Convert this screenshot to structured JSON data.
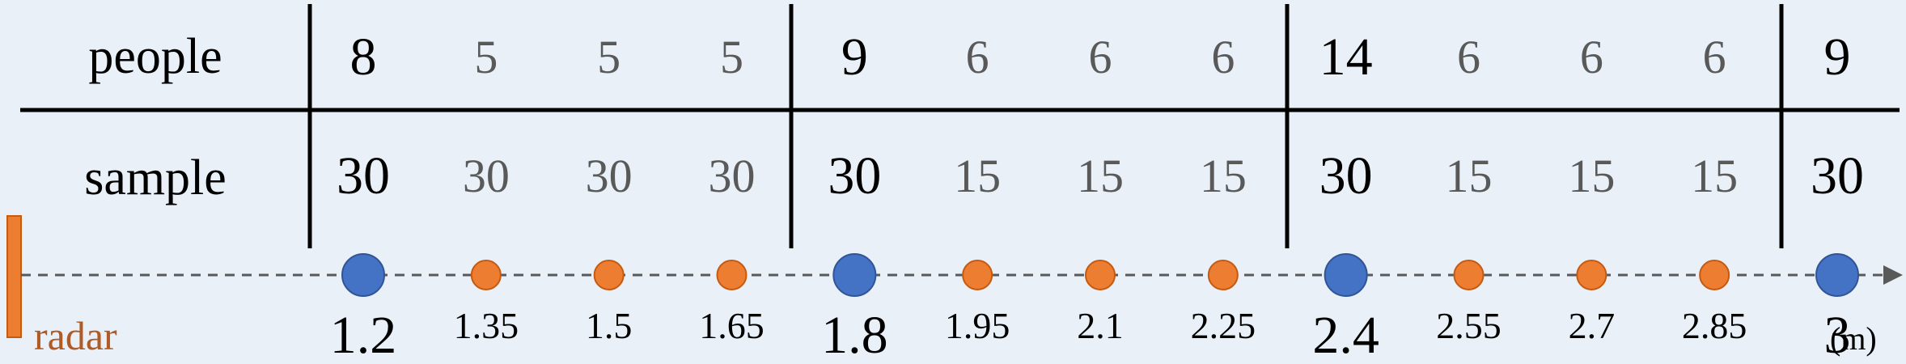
{
  "rows": {
    "people_label": "people",
    "sample_label": "sample"
  },
  "columns": [
    {
      "people": "8",
      "sample": "30",
      "distance": "1.2",
      "major": true
    },
    {
      "people": "5",
      "sample": "30",
      "distance": "1.35",
      "major": false
    },
    {
      "people": "5",
      "sample": "30",
      "distance": "1.5",
      "major": false
    },
    {
      "people": "5",
      "sample": "30",
      "distance": "1.65",
      "major": false
    },
    {
      "people": "9",
      "sample": "30",
      "distance": "1.8",
      "major": true
    },
    {
      "people": "6",
      "sample": "15",
      "distance": "1.95",
      "major": false
    },
    {
      "people": "6",
      "sample": "15",
      "distance": "2.1",
      "major": false
    },
    {
      "people": "6",
      "sample": "15",
      "distance": "2.25",
      "major": false
    },
    {
      "people": "14",
      "sample": "30",
      "distance": "2.4",
      "major": true
    },
    {
      "people": "6",
      "sample": "15",
      "distance": "2.55",
      "major": false
    },
    {
      "people": "6",
      "sample": "15",
      "distance": "2.7",
      "major": false
    },
    {
      "people": "6",
      "sample": "15",
      "distance": "2.85",
      "major": false
    },
    {
      "people": "9",
      "sample": "30",
      "distance": "3",
      "major": true
    }
  ],
  "axis": {
    "unit": "(m)",
    "radar_label": "radar"
  },
  "colors": {
    "background": "#e9f0f8",
    "major_dot": "#4472c4",
    "minor_dot": "#ed7d31",
    "radar": "#ed7d31",
    "radar_text": "#b05a25",
    "major_text": "#000000",
    "minor_text": "#595959",
    "axis_line": "#595959"
  }
}
